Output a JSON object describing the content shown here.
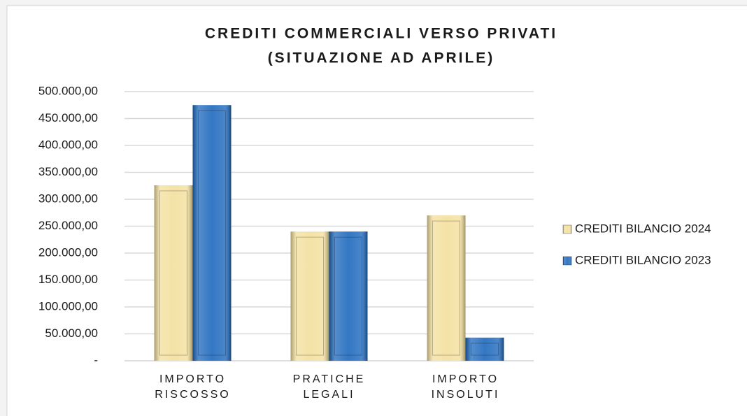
{
  "chart_data": {
    "type": "bar",
    "title": "CREDITI COMMERCIALI VERSO PRIVATI",
    "subtitle": "(SITUAZIONE AD APRILE)",
    "categories": [
      "IMPORTO RISCOSSO",
      "PRATICHE LEGALI",
      "IMPORTO INSOLUTI"
    ],
    "series": [
      {
        "name": "CREDITI BILANCIO 2024",
        "color": "#f3df9c",
        "values": [
          326000,
          240000,
          270000
        ]
      },
      {
        "name": "CREDITI BILANCIO 2023",
        "color": "#1d68bd",
        "values": [
          475000,
          240000,
          43000
        ]
      }
    ],
    "ylim": [
      0,
      500000
    ],
    "yticks": [
      {
        "value": 0,
        "label": "-"
      },
      {
        "value": 50000,
        "label": "50.000,00"
      },
      {
        "value": 100000,
        "label": "100.000,00"
      },
      {
        "value": 150000,
        "label": "150.000,00"
      },
      {
        "value": 200000,
        "label": "200.000,00"
      },
      {
        "value": 250000,
        "label": "250.000,00"
      },
      {
        "value": 300000,
        "label": "300.000,00"
      },
      {
        "value": 350000,
        "label": "350.000,00"
      },
      {
        "value": 400000,
        "label": "400.000,00"
      },
      {
        "value": 450000,
        "label": "450.000,00"
      },
      {
        "value": 500000,
        "label": "500.000,00"
      }
    ],
    "grid": true,
    "legend": "right"
  }
}
